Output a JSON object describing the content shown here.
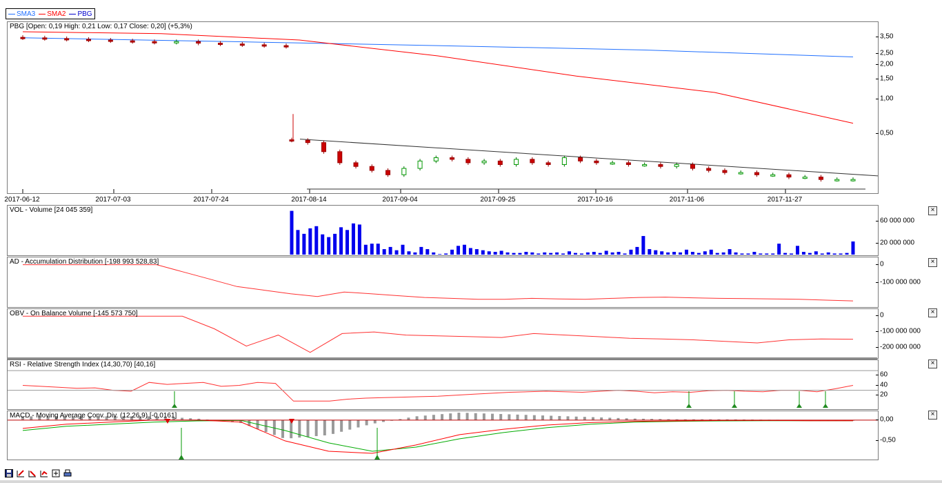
{
  "legend": [
    {
      "name": "SMA3",
      "color": "#1f6fff"
    },
    {
      "name": "SMA2",
      "color": "#ff0000"
    },
    {
      "name": "PBG",
      "color": "#0000cc"
    }
  ],
  "panes": {
    "price": "PBG [Open: 0,19  High: 0,21  Low: 0,17  Close: 0,20] (+5,3%)",
    "volume": "VOL - Volume [24 045 359]",
    "ad": "AD - Accumulation Distribution [-198 993 528,83]",
    "obv": "OBV - On Balance Volume [-145 573 750]",
    "rsi": "RSI - Relative Strength Index (14,30,70) [40,16]",
    "macd": "MACD - Moving Average Conv. Div. (12,26,9) [-0,0161]"
  },
  "close_symbol": "×",
  "chart_data": [
    {
      "type": "candlestick",
      "title": "PBG [Open: 0,19  High: 0,21  Low: 0,17  Close: 0,20] (+5,3%)",
      "scale": "log",
      "x_ticks": [
        "2017-06-12",
        "2017-07-03",
        "2017-07-24",
        "2017-08-14",
        "2017-09-04",
        "2017-09-25",
        "2017-10-16",
        "2017-11-06",
        "2017-11-27"
      ],
      "y_ticks": [
        "3,50",
        "2,50",
        "2,00",
        "1,50",
        "1,00",
        "0,50"
      ],
      "price_series": [
        {
          "name": "PBG",
          "segments": [
            [
              3.45,
              3.4,
              3.35,
              3.3,
              3.25,
              3.2,
              3.15,
              3.2,
              3.1,
              3.05,
              3.0,
              2.95,
              2.9
            ],
            [
              0.44,
              0.42,
              0.35,
              0.28,
              0.26,
              0.24,
              0.22,
              0.25,
              0.29,
              0.31,
              0.3,
              0.28,
              0.29,
              0.27,
              0.3,
              0.28,
              0.27,
              0.31,
              0.29,
              0.28,
              0.28,
              0.27,
              0.27,
              0.26,
              0.27,
              0.25,
              0.24,
              0.23,
              0.23,
              0.22,
              0.22,
              0.21,
              0.21,
              0.2,
              0.2,
              0.2
            ]
          ]
        }
      ],
      "series": [
        {
          "name": "SMA3",
          "values": [
            3.45,
            3.2,
            2.95,
            2.7,
            2.35
          ]
        },
        {
          "name": "SMA2",
          "values": [
            3.9,
            3.75,
            3.3,
            2.4,
            1.6,
            1.15,
            0.62
          ]
        }
      ],
      "trendlines": [
        {
          "from": 0.45,
          "to": 0.215
        },
        {
          "from": 0.165,
          "to": 0.165
        }
      ]
    },
    {
      "type": "bar",
      "title": "VOL - Volume [24 045 359]",
      "y_ticks": [
        "60 000 000",
        "20 000 000"
      ],
      "values": [
        80000000,
        45000000,
        38000000,
        48000000,
        52000000,
        37000000,
        32000000,
        38000000,
        50000000,
        45000000,
        57000000,
        55000000,
        18000000,
        20000000,
        20000000,
        10000000,
        14000000,
        8000000,
        18000000,
        6000000,
        4000000,
        14000000,
        10000000,
        4000000,
        1000000,
        2000000,
        9000000,
        16000000,
        18000000,
        12000000,
        10000000,
        8000000,
        6000000,
        5000000,
        7000000,
        4000000,
        3000000,
        3000000,
        5000000,
        4000000,
        2000000,
        4000000,
        3000000,
        4000000,
        2000000,
        6000000,
        3000000,
        2000000,
        4000000,
        5000000,
        3000000,
        7000000,
        4000000,
        5000000,
        2000000,
        9000000,
        14000000,
        34000000,
        10000000,
        8000000,
        6000000,
        4000000,
        5000000,
        4000000,
        9000000,
        5000000,
        3000000,
        6000000,
        9000000,
        3000000,
        4000000,
        10000000,
        4000000,
        2000000,
        2000000,
        5000000,
        2000000,
        2000000,
        2000000,
        20000000,
        3000000,
        2000000,
        16000000,
        5000000,
        3000000,
        6000000,
        2000000,
        4000000,
        2000000,
        2000000,
        3000000,
        24045359
      ]
    },
    {
      "type": "line",
      "title": "AD - Accumulation Distribution [-198 993 528,83]",
      "y_ticks": [
        "0",
        "-100 000 000"
      ],
      "values": [
        0,
        0,
        0,
        0,
        0,
        0,
        -40,
        -80,
        -120,
        -140,
        -160,
        -175,
        -150,
        -160,
        -170,
        -180,
        -185,
        -190,
        -190,
        -185,
        -188,
        -190,
        -185,
        -180,
        -178,
        -182,
        -185,
        -186,
        -188,
        -190,
        -195,
        -199
      ]
    },
    {
      "type": "line",
      "title": "OBV - On Balance Volume [-145 573 750]",
      "y_ticks": [
        "0",
        "-100 000 000",
        "-200 000 000"
      ],
      "values": [
        0,
        0,
        0,
        0,
        0,
        0,
        -80,
        -190,
        -120,
        -230,
        -110,
        -100,
        -120,
        -125,
        -130,
        -135,
        -110,
        -120,
        -130,
        -140,
        -145,
        -150,
        -160,
        -170,
        -150,
        -145,
        -146
      ]
    },
    {
      "type": "line",
      "title": "RSI - Relative Strength Index (14,30,70) [40,16]",
      "y_ticks": [
        "60",
        "40",
        "20"
      ],
      "levels": [
        30,
        70
      ],
      "values": [
        40,
        38,
        36,
        34,
        35,
        30,
        28,
        46,
        42,
        44,
        46,
        38,
        40,
        46,
        44,
        8,
        8,
        8,
        12,
        14,
        15,
        16,
        17,
        18,
        20,
        22,
        24,
        26,
        27,
        28,
        27,
        26,
        28,
        30,
        28,
        25,
        27,
        26,
        29,
        30,
        28,
        27,
        30,
        30,
        27,
        33,
        40
      ]
    },
    {
      "type": "bar+line",
      "title": "MACD - Moving Average Conv. Div. (12,26,9) [-0,0161]",
      "y_ticks": [
        "0,00",
        "-0,50"
      ],
      "values_macd": [
        -0.2,
        -0.1,
        -0.05,
        0,
        0,
        -0.05,
        -0.5,
        -0.75,
        -0.8,
        -0.6,
        -0.35,
        -0.22,
        -0.12,
        -0.06,
        -0.03,
        -0.02,
        -0.01,
        -0.01,
        -0.015,
        -0.016
      ],
      "values_signal": [
        -0.25,
        -0.15,
        -0.1,
        -0.05,
        -0.02,
        -0.01,
        -0.25,
        -0.55,
        -0.75,
        -0.65,
        -0.45,
        -0.3,
        -0.18,
        -0.1,
        -0.05,
        -0.03,
        -0.02,
        -0.015,
        -0.015,
        -0.016
      ]
    }
  ],
  "toolbar": [
    "save-icon",
    "zoom-in-icon",
    "zoom-out-icon",
    "grid-icon",
    "fit-icon",
    "print-icon"
  ]
}
